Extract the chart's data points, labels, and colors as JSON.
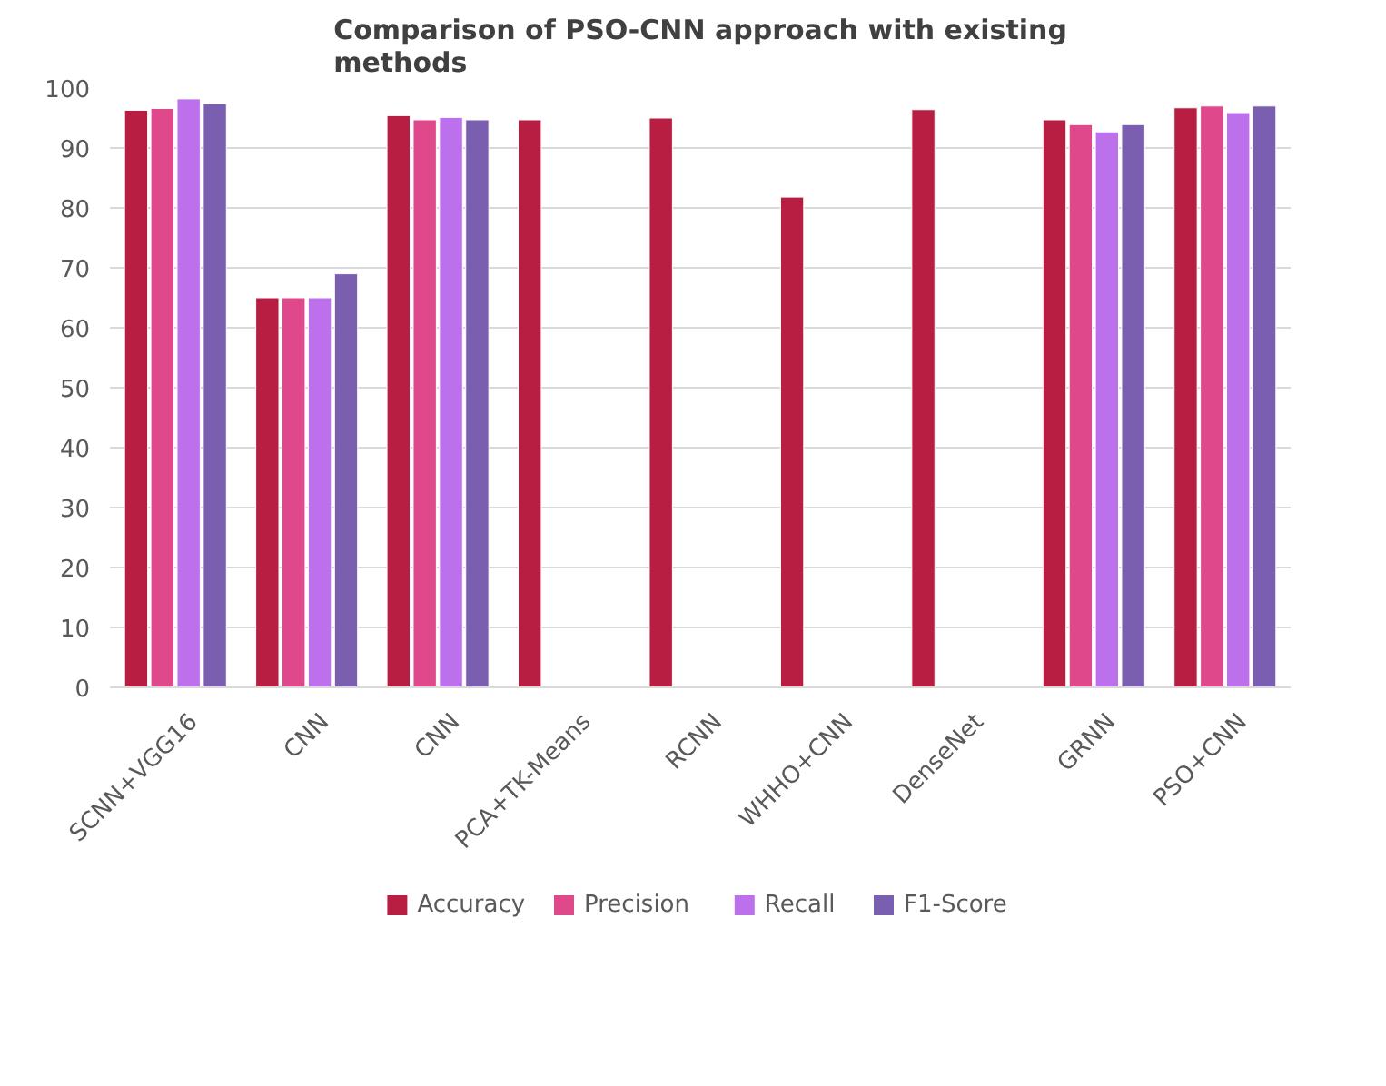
{
  "chart_data": {
    "type": "bar",
    "title": "Comparison of PSO-CNN approach with existing methods",
    "categories": [
      "SCNN+VGG16",
      "CNN",
      "CNN",
      "PCA+TK-Means",
      "RCNN",
      "WHHO+CNN",
      "DenseNet",
      "GRNN",
      "PSO+CNN"
    ],
    "series": [
      {
        "name": "Accuracy",
        "color": "#b71e42",
        "values": [
          96.3,
          65,
          95.4,
          94.7,
          95.0,
          81.8,
          96.4,
          94.7,
          96.7
        ]
      },
      {
        "name": "Precision",
        "color": "#e0488c",
        "values": [
          96.6,
          65,
          94.7,
          null,
          null,
          null,
          null,
          93.9,
          97.0
        ]
      },
      {
        "name": "Recall",
        "color": "#bd70ec",
        "values": [
          98.2,
          65,
          95.1,
          null,
          null,
          null,
          null,
          92.7,
          95.9
        ]
      },
      {
        "name": "F1-Score",
        "color": "#7a5eb0",
        "values": [
          97.4,
          69,
          94.7,
          null,
          null,
          null,
          null,
          93.9,
          97.0
        ]
      }
    ],
    "ylim": [
      0,
      100
    ],
    "yticks": [
      0,
      10,
      20,
      30,
      40,
      50,
      60,
      70,
      80,
      90,
      100
    ],
    "grid": "y",
    "legend": "bottom"
  }
}
